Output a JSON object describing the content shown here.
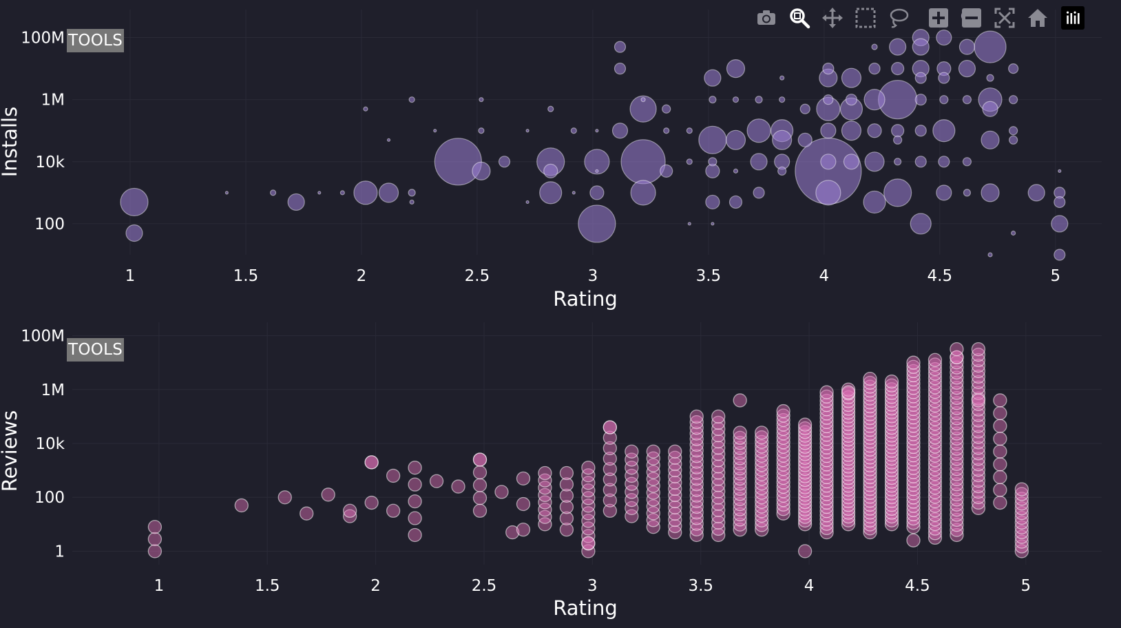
{
  "modebar": {
    "buttons": [
      {
        "name": "camera-icon",
        "tooltip": ""
      },
      {
        "name": "zoom-icon",
        "tooltip": ""
      },
      {
        "name": "pan-icon",
        "tooltip": ""
      },
      {
        "name": "box-select-icon",
        "tooltip": ""
      },
      {
        "name": "lasso-select-icon",
        "tooltip": ""
      },
      {
        "name": "zoom-in-icon",
        "tooltip": ""
      },
      {
        "name": "zoom-out-icon",
        "tooltip": ""
      },
      {
        "name": "autoscale-icon",
        "tooltip": ""
      },
      {
        "name": "home-icon",
        "tooltip": ""
      },
      {
        "name": "plotly-logo-icon",
        "tooltip": ""
      }
    ]
  },
  "colors": {
    "background": "#1f1f2b",
    "grid": "#2a2a37",
    "installs_marker": "#9c7fd6",
    "reviews_marker": "#e070b8"
  },
  "chart_data": [
    {
      "type": "scatter",
      "subtype": "bubble",
      "badge": "TOOLS",
      "xlabel": "Rating",
      "ylabel": "Installs",
      "yscale": "log",
      "xlim": [
        0.75,
        5.2
      ],
      "ylim": [
        1.0,
        8.9
      ],
      "xticks": [
        1,
        1.5,
        2,
        2.5,
        3,
        3.5,
        4,
        4.5,
        5
      ],
      "xtick_labels": [
        "1",
        "1.5",
        "2",
        "2.5",
        "3",
        "3.5",
        "4",
        "4.5",
        "5"
      ],
      "yticks": [
        100,
        10000,
        1000000,
        100000000
      ],
      "ytick_labels": [
        "100",
        "10k",
        "1M",
        "100M"
      ],
      "grid": true,
      "points": [
        [
          1,
          500,
          20
        ],
        [
          1,
          50,
          12
        ],
        [
          1.4,
          1000,
          2
        ],
        [
          1.6,
          1000,
          4
        ],
        [
          1.7,
          500,
          12
        ],
        [
          1.8,
          1000,
          2
        ],
        [
          1.9,
          1000,
          3
        ],
        [
          2,
          1000,
          17
        ],
        [
          2,
          500000,
          3
        ],
        [
          2.1,
          1000,
          14
        ],
        [
          2.1,
          50000,
          2
        ],
        [
          2.2,
          1000,
          5
        ],
        [
          2.2,
          500,
          3
        ],
        [
          2.2,
          1000000,
          4
        ],
        [
          2.3,
          100000,
          2
        ],
        [
          2.4,
          10000,
          34
        ],
        [
          2.5,
          5000,
          13
        ],
        [
          2.5,
          100000,
          4
        ],
        [
          2.5,
          1000000,
          3
        ],
        [
          2.6,
          10000,
          8
        ],
        [
          2.7,
          100000,
          2
        ],
        [
          2.7,
          500,
          2
        ],
        [
          2.8,
          10000,
          20
        ],
        [
          2.8,
          5000,
          10
        ],
        [
          2.8,
          1000,
          16
        ],
        [
          2.8,
          500000,
          4
        ],
        [
          2.9,
          1000,
          2
        ],
        [
          2.9,
          100000,
          4
        ],
        [
          3,
          10000,
          18
        ],
        [
          3,
          1000,
          10
        ],
        [
          3,
          100,
          27
        ],
        [
          3,
          5000,
          2
        ],
        [
          3,
          100000,
          2
        ],
        [
          3.1,
          50000000,
          8
        ],
        [
          3.1,
          10000000,
          8
        ],
        [
          3.1,
          100000,
          11
        ],
        [
          3.2,
          500000,
          19
        ],
        [
          3.2,
          10000,
          32
        ],
        [
          3.2,
          1000,
          18
        ],
        [
          3.2,
          1000000,
          3
        ],
        [
          3.3,
          5000,
          9
        ],
        [
          3.3,
          500000,
          6
        ],
        [
          3.3,
          100000,
          4
        ],
        [
          3.4,
          10000,
          4
        ],
        [
          3.4,
          100000,
          4
        ],
        [
          3.4,
          100,
          2
        ],
        [
          3.5,
          5000000,
          12
        ],
        [
          3.5,
          1000000,
          5
        ],
        [
          3.5,
          50000,
          20
        ],
        [
          3.5,
          10000,
          6
        ],
        [
          3.5,
          5000,
          10
        ],
        [
          3.5,
          500,
          10
        ],
        [
          3.5,
          100,
          2
        ],
        [
          3.6,
          10000000,
          13
        ],
        [
          3.6,
          1000000,
          4
        ],
        [
          3.6,
          50000,
          14
        ],
        [
          3.6,
          500,
          9
        ],
        [
          3.6,
          5000,
          3
        ],
        [
          3.7,
          100000,
          17
        ],
        [
          3.7,
          1000000,
          5
        ],
        [
          3.7,
          10000,
          12
        ],
        [
          3.7,
          1000,
          8
        ],
        [
          3.8,
          100000,
          16
        ],
        [
          3.8,
          50000,
          14
        ],
        [
          3.8,
          10000,
          11
        ],
        [
          3.8,
          5000,
          6
        ],
        [
          3.8,
          1000000,
          4
        ],
        [
          3.8,
          5000000,
          3
        ],
        [
          3.9,
          50000,
          10
        ],
        [
          3.9,
          500000,
          7
        ],
        [
          4,
          5000,
          48
        ],
        [
          4,
          1000,
          18
        ],
        [
          4,
          500000,
          17
        ],
        [
          4,
          5000000,
          13
        ],
        [
          4,
          10000000,
          8
        ],
        [
          4,
          10000,
          11
        ],
        [
          4,
          100000,
          11
        ],
        [
          4,
          1000000,
          7
        ],
        [
          4.1,
          100000,
          14
        ],
        [
          4.1,
          5000000,
          14
        ],
        [
          4.1,
          500000,
          16
        ],
        [
          4.1,
          10000,
          11
        ],
        [
          4.1,
          1000000,
          8
        ],
        [
          4.2,
          1000000,
          15
        ],
        [
          4.2,
          500,
          16
        ],
        [
          4.2,
          10000,
          14
        ],
        [
          4.2,
          100000,
          10
        ],
        [
          4.2,
          10000000,
          8
        ],
        [
          4.2,
          50000000,
          4
        ],
        [
          4.3,
          1000000,
          28
        ],
        [
          4.3,
          1000,
          20
        ],
        [
          4.3,
          100000,
          9
        ],
        [
          4.3,
          10000000,
          9
        ],
        [
          4.3,
          50000000,
          12
        ],
        [
          4.3,
          10000,
          5
        ],
        [
          4.3,
          50000,
          6
        ],
        [
          4.4,
          100000000,
          12
        ],
        [
          4.4,
          50000000,
          12
        ],
        [
          4.4,
          10000000,
          12
        ],
        [
          4.4,
          5000000,
          8
        ],
        [
          4.4,
          1000000,
          8
        ],
        [
          4.4,
          100000,
          8
        ],
        [
          4.4,
          100,
          15
        ],
        [
          4.4,
          10000,
          8
        ],
        [
          4.5,
          100000000,
          11
        ],
        [
          4.5,
          100000,
          16
        ],
        [
          4.5,
          1000,
          11
        ],
        [
          4.5,
          10000000,
          10
        ],
        [
          4.5,
          5000000,
          8
        ],
        [
          4.5,
          1000000,
          6
        ],
        [
          4.5,
          10000,
          8
        ],
        [
          4.6,
          50000000,
          11
        ],
        [
          4.6,
          10000000,
          12
        ],
        [
          4.6,
          1000000,
          6
        ],
        [
          4.6,
          500000000,
          8
        ],
        [
          4.6,
          1000,
          5
        ],
        [
          4.6,
          10000,
          6
        ],
        [
          4.7,
          50000000,
          23
        ],
        [
          4.7,
          1000000,
          17
        ],
        [
          4.7,
          500000,
          11
        ],
        [
          4.7,
          50000,
          13
        ],
        [
          4.7,
          1000,
          13
        ],
        [
          4.7,
          5000000,
          5
        ],
        [
          4.7,
          10,
          3
        ],
        [
          4.8,
          10000000,
          7
        ],
        [
          4.8,
          1000000,
          6
        ],
        [
          4.8,
          100000,
          6
        ],
        [
          4.8,
          50000,
          6
        ],
        [
          4.8,
          50,
          3
        ],
        [
          4.9,
          1000,
          12
        ],
        [
          5,
          1000,
          8
        ],
        [
          5,
          500,
          8
        ],
        [
          5,
          100,
          12
        ],
        [
          5,
          10,
          8
        ],
        [
          5,
          5000,
          2
        ]
      ]
    },
    {
      "type": "scatter",
      "badge": "TOOLS",
      "xlabel": "Rating",
      "ylabel": "Reviews",
      "yscale": "log",
      "xlim": [
        0.6,
        5.35
      ],
      "ylim": [
        -0.5,
        8.5
      ],
      "xticks": [
        1,
        1.5,
        2,
        2.5,
        3,
        3.5,
        4,
        4.5,
        5
      ],
      "xtick_labels": [
        "1",
        "1.5",
        "2",
        "2.5",
        "3",
        "3.5",
        "4",
        "4.5",
        "5"
      ],
      "yticks": [
        1,
        100,
        10000,
        1000000,
        100000000
      ],
      "ytick_labels": [
        "1",
        "100",
        "10k",
        "1M",
        "100M"
      ],
      "grid": true,
      "columns": [
        {
          "x": 1,
          "lo": 0,
          "hi": 0.9,
          "n": 3
        },
        {
          "x": 1.4,
          "lo": 1.7,
          "hi": 1.7,
          "n": 1
        },
        {
          "x": 1.6,
          "lo": 2,
          "hi": 2,
          "n": 1
        },
        {
          "x": 1.7,
          "lo": 1.4,
          "hi": 1.4,
          "n": 1
        },
        {
          "x": 1.8,
          "lo": 2.1,
          "hi": 2.1,
          "n": 1
        },
        {
          "x": 1.9,
          "lo": 1.3,
          "hi": 1.5,
          "n": 2
        },
        {
          "x": 2,
          "lo": 1.8,
          "hi": 3.3,
          "n": 2
        },
        {
          "x": 2.1,
          "lo": 1.5,
          "hi": 2.8,
          "n": 2
        },
        {
          "x": 2.2,
          "lo": 0.6,
          "hi": 3.1,
          "n": 5
        },
        {
          "x": 2.3,
          "lo": 2.6,
          "hi": 2.6,
          "n": 1
        },
        {
          "x": 2.4,
          "lo": 2.4,
          "hi": 2.4,
          "n": 1
        },
        {
          "x": 2.5,
          "lo": 1.5,
          "hi": 3.4,
          "n": 5
        },
        {
          "x": 2.6,
          "lo": 2.2,
          "hi": 2.2,
          "n": 1
        },
        {
          "x": 2.65,
          "lo": 0.7,
          "hi": 0.7,
          "n": 1
        },
        {
          "x": 2.7,
          "lo": 0.8,
          "hi": 2.7,
          "n": 3
        },
        {
          "x": 2.8,
          "lo": 1.0,
          "hi": 2.9,
          "n": 8
        },
        {
          "x": 2.9,
          "lo": 0.8,
          "hi": 2.9,
          "n": 6
        },
        {
          "x": 3,
          "lo": 0,
          "hi": 3.1,
          "n": 12
        },
        {
          "x": 3.1,
          "lo": 1.5,
          "hi": 4.6,
          "n": 9
        },
        {
          "x": 3.2,
          "lo": 1.3,
          "hi": 3.7,
          "n": 9
        },
        {
          "x": 3.3,
          "lo": 0.9,
          "hi": 3.7,
          "n": 12
        },
        {
          "x": 3.4,
          "lo": 0.7,
          "hi": 3.7,
          "n": 14
        },
        {
          "x": 3.5,
          "lo": 0.6,
          "hi": 5.0,
          "n": 22
        },
        {
          "x": 3.6,
          "lo": 0.6,
          "hi": 5.0,
          "n": 20
        },
        {
          "x": 3.7,
          "lo": 0.8,
          "hi": 4.4,
          "n": 20
        },
        {
          "x": 3.8,
          "lo": 0.8,
          "hi": 4.4,
          "n": 22
        },
        {
          "x": 3.9,
          "lo": 1.4,
          "hi": 5.2,
          "n": 24
        },
        {
          "x": 4,
          "lo": 1.0,
          "hi": 4.7,
          "n": 28
        },
        {
          "x": 4.1,
          "lo": 0.7,
          "hi": 5.9,
          "n": 34
        },
        {
          "x": 4.2,
          "lo": 1.0,
          "hi": 6.0,
          "n": 36
        },
        {
          "x": 4.3,
          "lo": 0.7,
          "hi": 6.4,
          "n": 40
        },
        {
          "x": 4.4,
          "lo": 1.0,
          "hi": 6.3,
          "n": 38
        },
        {
          "x": 4.5,
          "lo": 0.9,
          "hi": 7.0,
          "n": 40
        },
        {
          "x": 4.6,
          "lo": 0.5,
          "hi": 7.1,
          "n": 40
        },
        {
          "x": 4.7,
          "lo": 0.6,
          "hi": 7.2,
          "n": 36
        },
        {
          "x": 4.8,
          "lo": 1.6,
          "hi": 7.5,
          "n": 30
        },
        {
          "x": 4.9,
          "lo": 1.8,
          "hi": 5.6,
          "n": 9
        },
        {
          "x": 5,
          "lo": 0,
          "hi": 2.3,
          "n": 14
        }
      ],
      "extra_points": [
        [
          2,
          3.3
        ],
        [
          2.5,
          3.4
        ],
        [
          3.1,
          4.6
        ],
        [
          3.7,
          5.6
        ],
        [
          4.5,
          0.4
        ],
        [
          4,
          0
        ],
        [
          3,
          0.3
        ],
        [
          4.8,
          5.6
        ],
        [
          4.2,
          5.9
        ],
        [
          4.7,
          7.2
        ],
        [
          4.7,
          7.5
        ]
      ]
    }
  ]
}
